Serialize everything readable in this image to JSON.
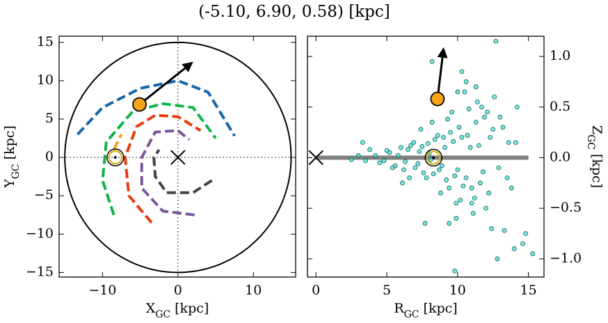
{
  "title": "(-5.10, 6.90, 0.58) [kpc]",
  "chart_data": [
    {
      "type": "line",
      "xlabel": {
        "text": "X",
        "sub": "GC",
        "unit": "[kpc]"
      },
      "ylabel": {
        "text": "Y",
        "sub": "GC",
        "unit": "[kpc]"
      },
      "xlim": [
        -15.75,
        15.6
      ],
      "ylim": [
        -15.6,
        15.8
      ],
      "xticks": [
        {
          "value": -10,
          "label": "−10"
        },
        0,
        10
      ],
      "yticks": [
        {
          "value": -15,
          "label": "−15"
        },
        {
          "value": -10,
          "label": "−10"
        },
        {
          "value": -5,
          "label": "−5"
        },
        0,
        5,
        10,
        15
      ],
      "yaxis_side": "left",
      "crosshair": true,
      "circle": {
        "radius": 15,
        "color": "#000000"
      },
      "series": [
        {
          "color": "#1565a8",
          "x": [
            -13.3,
            -10,
            -5,
            0,
            4,
            7.5
          ],
          "values": [
            3,
            6.5,
            9,
            10,
            8.5,
            2.8
          ]
        },
        {
          "color": "#10b548",
          "x": [
            -8.5,
            -10,
            -9.5,
            -6,
            -2,
            2,
            5
          ],
          "values": [
            -7.5,
            -3,
            2,
            6,
            7,
            6.5,
            2.5
          ]
        },
        {
          "color": "#f5a623",
          "x": [
            -8.5,
            -7.5
          ],
          "values": [
            1,
            3
          ]
        },
        {
          "color": "#e8390e",
          "x": [
            -3.5,
            -6.5,
            -7,
            -5.5,
            -3,
            0,
            3
          ],
          "values": [
            -8.5,
            -5,
            0,
            4,
            5.5,
            5.3,
            3.5
          ]
        },
        {
          "color": "#7b559a",
          "x": [
            2.2,
            -2,
            -4.8,
            -4.8,
            -3,
            0,
            1.5
          ],
          "values": [
            -7.5,
            -7,
            -4,
            0,
            3.3,
            3.5,
            2.3
          ]
        },
        {
          "color": "#444444",
          "x": [
            4.5,
            2,
            -1.5,
            -3,
            -3.2,
            -2.5
          ],
          "values": [
            -3,
            -4.6,
            -4.6,
            -2.5,
            0,
            1
          ]
        }
      ],
      "arrow": {
        "x": [
          -5.1,
          1.8
        ],
        "y": [
          6.9,
          12.3
        ],
        "color": "#000000"
      },
      "markers": [
        {
          "symbol": "circle",
          "color": "#f9a31a",
          "x": -5.1,
          "y": 6.9
        },
        {
          "symbol": "sun",
          "color": "#d4b000",
          "x": -8.3,
          "y": 0
        },
        {
          "symbol": "cross",
          "color": "#000000",
          "x": 0,
          "y": 0
        }
      ]
    },
    {
      "type": "scatter",
      "xlabel": {
        "text": "R",
        "sub": "GC",
        "unit": "[kpc]"
      },
      "ylabel": {
        "text": "Z",
        "sub": "GC",
        "unit": "[kpc]"
      },
      "xlim": [
        -0.6,
        16.1
      ],
      "ylim": [
        -1.18,
        1.2
      ],
      "xticks": [
        0,
        5,
        10,
        15
      ],
      "yticks": [
        {
          "value": -1,
          "label": "−1.0"
        },
        {
          "value": -0.5,
          "label": "−0.5"
        },
        {
          "value": 0,
          "label": "0.0"
        },
        0.5,
        {
          "value": 1,
          "label": "1.0"
        }
      ],
      "yaxis_side": "right",
      "color": "#3fe0d0",
      "reference_line": {
        "x": [
          0,
          15
        ],
        "y": [
          0,
          0
        ],
        "color": "#808080"
      },
      "x": [
        5.2,
        5.6,
        6.0,
        6.3,
        6.7,
        7.0,
        7.3,
        7.6,
        7.9,
        8.1,
        8.4,
        8.7,
        9.0,
        9.2,
        9.5,
        9.8,
        10.1,
        10.4,
        10.7,
        11.0,
        11.3,
        11.6,
        11.9,
        12.2,
        12.5,
        4.8,
        5.0,
        5.4,
        5.8,
        6.2,
        6.5,
        6.9,
        7.2,
        7.5,
        7.8,
        8.0,
        8.3,
        8.6,
        8.9,
        9.1,
        9.4,
        9.7,
        10.0,
        10.3,
        10.6,
        10.9,
        11.2,
        11.5,
        11.8,
        12.1,
        4.2,
        4.5,
        3.8,
        3.5,
        3.3,
        9.3,
        10.2,
        10.8,
        11.4,
        12.0,
        12.6,
        12.9,
        13.2,
        13.5,
        8.8,
        9.6,
        10.5,
        11.1,
        11.7,
        12.3,
        6.6,
        7.4,
        8.2,
        9.9,
        10.6,
        11.3,
        12.4,
        13.0,
        13.6,
        14.2,
        14.8,
        15.3,
        14.6,
        14.1,
        13.8,
        9.4,
        10.0,
        10.3,
        8.2,
        9.9,
        11.0,
        12.8,
        13.3,
        14.0,
        7.7,
        6.1,
        2.5,
        3.0,
        9.8,
        12.7
      ],
      "values": [
        0.05,
        -0.08,
        0.1,
        -0.04,
        0.12,
        -0.1,
        0.06,
        -0.15,
        0.14,
        -0.02,
        0.18,
        -0.12,
        0.2,
        -0.22,
        0.25,
        -0.18,
        0.3,
        -0.28,
        0.22,
        -0.3,
        0.35,
        -0.25,
        0.4,
        -0.35,
        0.28,
        -0.03,
        0.07,
        -0.1,
        0.02,
        -0.12,
        0.08,
        0.15,
        -0.06,
        0.11,
        -0.2,
        0.04,
        -0.16,
        0.22,
        -0.08,
        0.1,
        -0.3,
        0.16,
        -0.12,
        0.2,
        -0.2,
        0.1,
        -0.4,
        0.12,
        -0.14,
        0.45,
        0.02,
        -0.05,
        0.08,
        -0.03,
        0.15,
        0.38,
        -0.42,
        0.48,
        0.55,
        -0.5,
        0.6,
        -0.1,
        0.3,
        -0.2,
        -0.35,
        0.45,
        0.65,
        -0.55,
        0.5,
        0.2,
        -0.2,
        0.28,
        0.35,
        -0.45,
        0.75,
        0.7,
        -0.7,
        0.4,
        0.15,
        0.5,
        -0.75,
        -0.95,
        -0.85,
        0.15,
        -0.3,
        -0.65,
        0.65,
        0.85,
        0.95,
        -0.6,
        -0.45,
        -1.0,
        -0.72,
        -0.9,
        -0.65,
        -0.25,
        -0.02,
        0.02,
        -1.12,
        1.15
      ],
      "arrow": {
        "x": [
          8.58,
          9.0
        ],
        "y": [
          0.58,
          1.07
        ],
        "color": "#000000"
      },
      "markers": [
        {
          "symbol": "circle",
          "color": "#f9a31a",
          "x": 8.58,
          "y": 0.58
        },
        {
          "symbol": "sun",
          "color": "#d4b000",
          "x": 8.3,
          "y": 0
        },
        {
          "symbol": "cross",
          "color": "#000000",
          "x": 0,
          "y": 0
        }
      ]
    }
  ]
}
